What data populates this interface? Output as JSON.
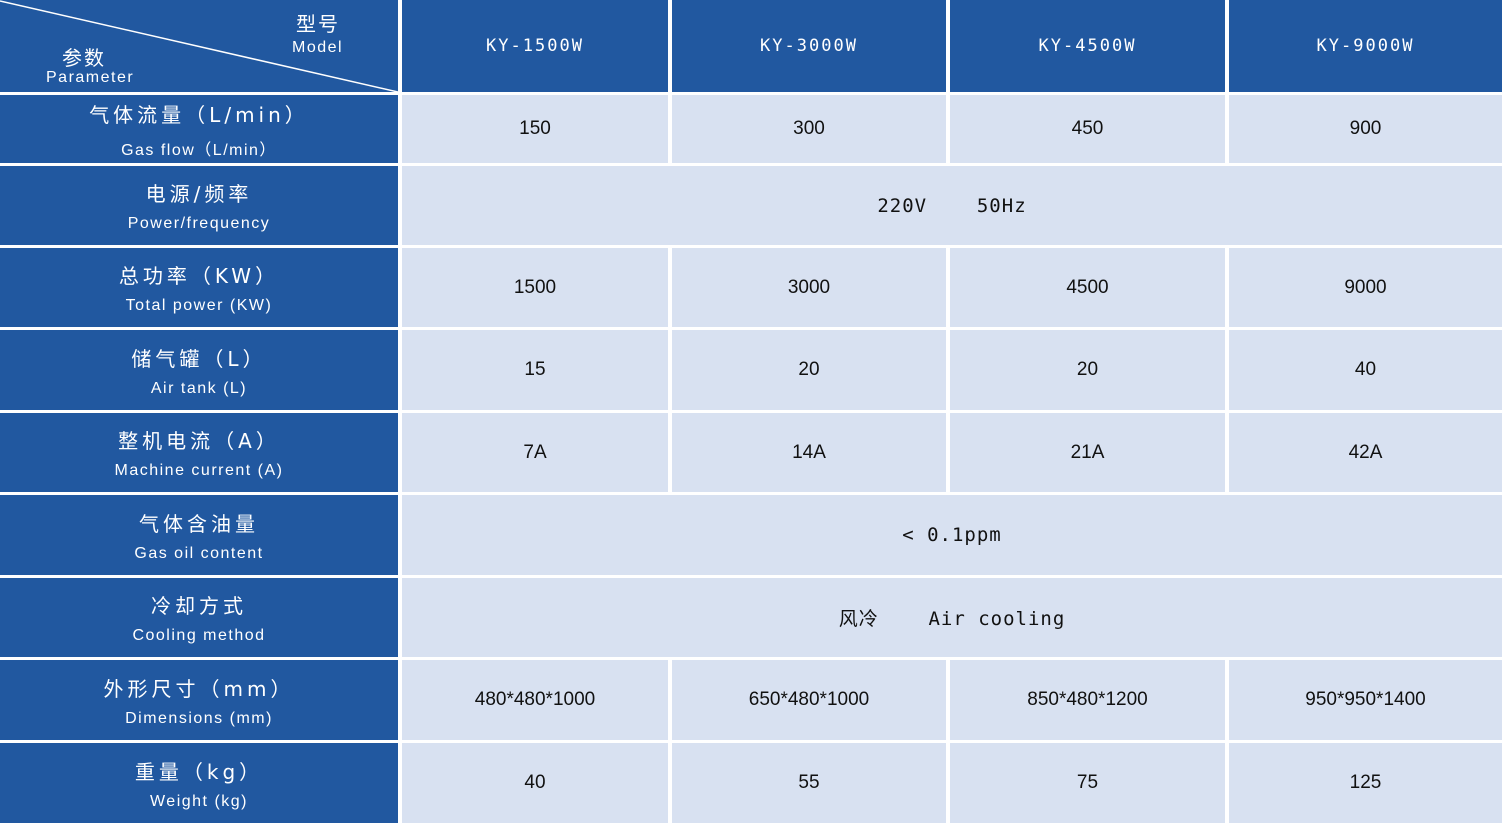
{
  "colors": {
    "header_bg": "#2158a0",
    "cell_bg": "#d8e1f1",
    "text_light": "#ffffff",
    "text_dark": "#111111"
  },
  "corner": {
    "model_zh": "型号",
    "model_en": "Model",
    "param_zh": "参数",
    "param_en": "Parameter"
  },
  "models": [
    "KY-1500W",
    "KY-3000W",
    "KY-4500W",
    "KY-9000W"
  ],
  "rows": [
    {
      "zh": "气体流量（L/min）",
      "en": "Gas flow（L/min）",
      "values": [
        "150",
        "300",
        "450",
        "900"
      ]
    },
    {
      "zh": "电源/频率",
      "en": "Power/frequency",
      "merged": "220V    50Hz"
    },
    {
      "zh": "总功率（KW）",
      "en": "Total power (KW)",
      "values": [
        "1500",
        "3000",
        "4500",
        "9000"
      ]
    },
    {
      "zh": "储气罐（L）",
      "en": "Air tank (L)",
      "values": [
        "15",
        "20",
        "20",
        "40"
      ]
    },
    {
      "zh": "整机电流（A）",
      "en": "Machine current (A)",
      "values": [
        "7A",
        "14A",
        "21A",
        "42A"
      ]
    },
    {
      "zh": "气体含油量",
      "en": "Gas oil content",
      "merged": "< 0.1ppm"
    },
    {
      "zh": "冷却方式",
      "en": "Cooling method",
      "merged": "风冷    Air cooling"
    },
    {
      "zh": "外形尺寸（mm）",
      "en": "Dimensions (mm)",
      "values": [
        "480*480*1000",
        "650*480*1000",
        "850*480*1200",
        "950*950*1400"
      ]
    },
    {
      "zh": "重量（kg）",
      "en": "Weight (kg)",
      "values": [
        "40",
        "55",
        "75",
        "125"
      ]
    }
  ]
}
